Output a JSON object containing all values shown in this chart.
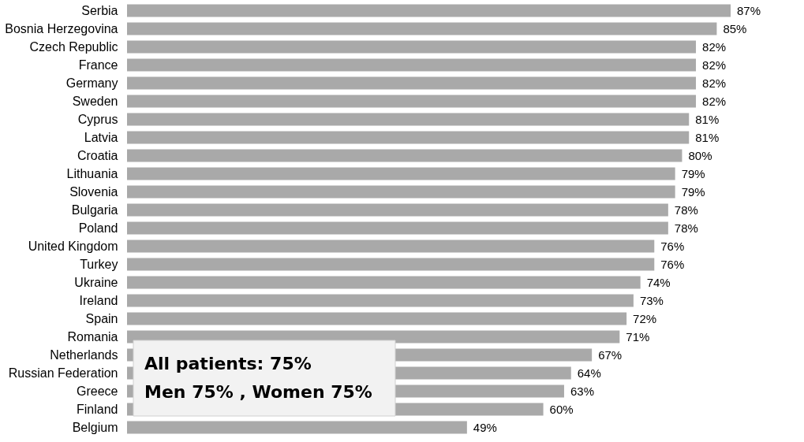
{
  "chart_data": {
    "type": "bar",
    "orientation": "horizontal",
    "color": "#a9a9a9",
    "categories": [
      "Serbia",
      "Bosnia Herzegovina",
      "Czech Republic",
      "France",
      "Germany",
      "Sweden",
      "Cyprus",
      "Latvia",
      "Croatia",
      "Lithuania",
      "Slovenia",
      "Bulgaria",
      "Poland",
      "United Kingdom",
      "Turkey",
      "Ukraine",
      "Ireland",
      "Spain",
      "Romania",
      "Netherlands",
      "Russian Federation",
      "Greece",
      "Finland",
      "Belgium"
    ],
    "values": [
      87,
      85,
      82,
      82,
      82,
      82,
      81,
      81,
      80,
      79,
      79,
      78,
      78,
      76,
      76,
      74,
      73,
      72,
      71,
      67,
      64,
      63,
      60,
      49
    ],
    "value_labels": [
      "87%",
      "85%",
      "82%",
      "82%",
      "82%",
      "82%",
      "81%",
      "81%",
      "80%",
      "79%",
      "79%",
      "78%",
      "78%",
      "76%",
      "76%",
      "74%",
      "73%",
      "72%",
      "71%",
      "67%",
      "64%",
      "63%",
      "60%",
      "49%"
    ],
    "annotations": [
      "All patients: 75%",
      "Men 75% , Women 75%"
    ]
  }
}
